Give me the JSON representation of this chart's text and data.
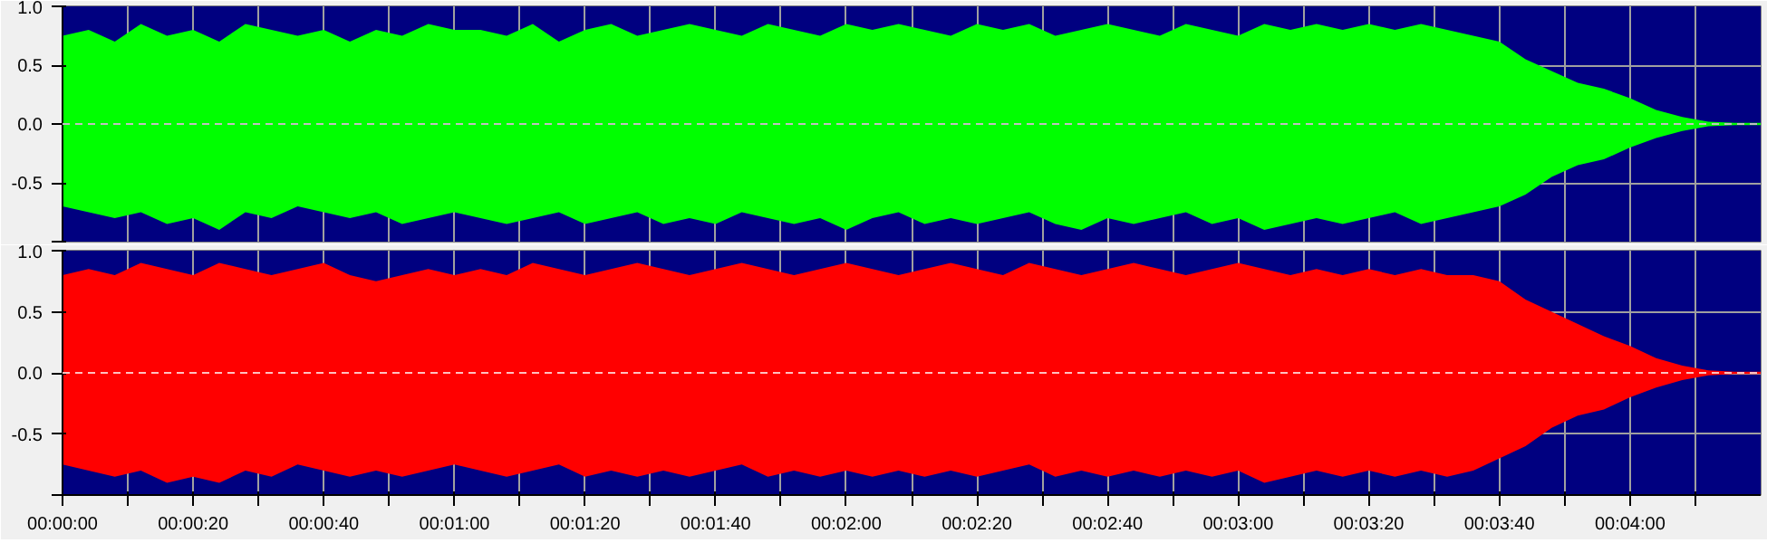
{
  "chart_data": [
    {
      "type": "area",
      "x": [
        0,
        4,
        8,
        12,
        16,
        20,
        24,
        28,
        32,
        36,
        40,
        44,
        48,
        52,
        56,
        60,
        64,
        68,
        72,
        76,
        80,
        84,
        88,
        92,
        96,
        100,
        104,
        108,
        112,
        116,
        120,
        124,
        128,
        132,
        136,
        140,
        144,
        148,
        152,
        156,
        160,
        164,
        168,
        172,
        176,
        180,
        184,
        188,
        192,
        196,
        200,
        204,
        208,
        212,
        216,
        220,
        224,
        228,
        232,
        236,
        240,
        244,
        248,
        252,
        256,
        260
      ],
      "xlim": [
        0,
        260
      ],
      "ylim": [
        -1.0,
        1.0
      ],
      "yticks": [
        {
          "value": -1.0,
          "label": null
        },
        {
          "value": -0.5,
          "label": "-0.5"
        },
        {
          "value": 0,
          "label": "0.0"
        },
        {
          "value": 0.5,
          "label": "0.5"
        },
        {
          "value": 1.0,
          "label": "1.0"
        }
      ],
      "xticks": [
        {
          "value": 0,
          "label": null
        },
        {
          "value": 10,
          "label": null
        },
        {
          "value": 20,
          "label": null
        },
        {
          "value": 30,
          "label": null
        },
        {
          "value": 40,
          "label": null
        },
        {
          "value": 50,
          "label": null
        },
        {
          "value": 60,
          "label": null
        },
        {
          "value": 70,
          "label": null
        },
        {
          "value": 80,
          "label": null
        },
        {
          "value": 90,
          "label": null
        },
        {
          "value": 100,
          "label": null
        },
        {
          "value": 110,
          "label": null
        },
        {
          "value": 120,
          "label": null
        },
        {
          "value": 130,
          "label": null
        },
        {
          "value": 140,
          "label": null
        },
        {
          "value": 150,
          "label": null
        },
        {
          "value": 160,
          "label": null
        },
        {
          "value": 170,
          "label": null
        },
        {
          "value": 180,
          "label": null
        },
        {
          "value": 190,
          "label": null
        },
        {
          "value": 200,
          "label": null
        },
        {
          "value": 210,
          "label": null
        },
        {
          "value": 220,
          "label": null
        },
        {
          "value": 230,
          "label": null
        },
        {
          "value": 240,
          "label": null
        },
        {
          "value": 250,
          "label": null
        }
      ],
      "tick_labels": "y",
      "grid": true,
      "bands": [
        {
          "axis": "x",
          "from": 0,
          "to": 260,
          "color": "#000080"
        }
      ],
      "ref_lines": [
        {
          "axis": "y",
          "value": 0,
          "color": "#c0c0c0",
          "line_style": "dashed"
        }
      ],
      "series": [
        {
          "color": "#00ff00",
          "values": [
            0.75,
            0.8,
            0.7,
            0.85,
            0.75,
            0.8,
            0.7,
            0.85,
            0.8,
            0.75,
            0.8,
            0.7,
            0.8,
            0.75,
            0.85,
            0.8,
            0.8,
            0.75,
            0.85,
            0.7,
            0.8,
            0.85,
            0.75,
            0.8,
            0.85,
            0.8,
            0.75,
            0.85,
            0.8,
            0.75,
            0.85,
            0.8,
            0.85,
            0.8,
            0.75,
            0.85,
            0.8,
            0.85,
            0.75,
            0.8,
            0.85,
            0.8,
            0.75,
            0.85,
            0.8,
            0.75,
            0.85,
            0.8,
            0.85,
            0.8,
            0.85,
            0.8,
            0.85,
            0.8,
            0.75,
            0.7,
            0.55,
            0.45,
            0.35,
            0.3,
            0.22,
            0.12,
            0.06,
            0.02,
            0.01,
            0.01
          ]
        },
        {
          "color": "#00ff00",
          "values": [
            -0.7,
            -0.75,
            -0.8,
            -0.75,
            -0.85,
            -0.8,
            -0.9,
            -0.75,
            -0.8,
            -0.7,
            -0.75,
            -0.8,
            -0.75,
            -0.85,
            -0.8,
            -0.75,
            -0.8,
            -0.85,
            -0.8,
            -0.75,
            -0.85,
            -0.8,
            -0.75,
            -0.85,
            -0.8,
            -0.85,
            -0.75,
            -0.8,
            -0.85,
            -0.8,
            -0.9,
            -0.8,
            -0.75,
            -0.85,
            -0.8,
            -0.85,
            -0.8,
            -0.75,
            -0.85,
            -0.9,
            -0.8,
            -0.85,
            -0.8,
            -0.75,
            -0.85,
            -0.8,
            -0.9,
            -0.85,
            -0.8,
            -0.85,
            -0.8,
            -0.75,
            -0.85,
            -0.8,
            -0.75,
            -0.7,
            -0.6,
            -0.45,
            -0.35,
            -0.3,
            -0.2,
            -0.12,
            -0.06,
            -0.02,
            -0.01,
            -0.01
          ]
        }
      ]
    },
    {
      "type": "area",
      "x": [
        0,
        4,
        8,
        12,
        16,
        20,
        24,
        28,
        32,
        36,
        40,
        44,
        48,
        52,
        56,
        60,
        64,
        68,
        72,
        76,
        80,
        84,
        88,
        92,
        96,
        100,
        104,
        108,
        112,
        116,
        120,
        124,
        128,
        132,
        136,
        140,
        144,
        148,
        152,
        156,
        160,
        164,
        168,
        172,
        176,
        180,
        184,
        188,
        192,
        196,
        200,
        204,
        208,
        212,
        216,
        220,
        224,
        228,
        232,
        236,
        240,
        244,
        248,
        252,
        256,
        260
      ],
      "xlim": [
        0,
        260
      ],
      "ylim": [
        -1.0,
        1.0
      ],
      "yticks": [
        {
          "value": -1.0,
          "label": null
        },
        {
          "value": -0.5,
          "label": "-0.5"
        },
        {
          "value": 0,
          "label": "0.0"
        },
        {
          "value": 0.5,
          "label": "0.5"
        },
        {
          "value": 1.0,
          "label": "1.0"
        }
      ],
      "xticks": [
        {
          "value": 0,
          "label": "00:00:00"
        },
        {
          "value": 10,
          "label": null
        },
        {
          "value": 20,
          "label": "00:00:20"
        },
        {
          "value": 30,
          "label": null
        },
        {
          "value": 40,
          "label": "00:00:40"
        },
        {
          "value": 50,
          "label": null
        },
        {
          "value": 60,
          "label": "00:01:00"
        },
        {
          "value": 70,
          "label": null
        },
        {
          "value": 80,
          "label": "00:01:20"
        },
        {
          "value": 90,
          "label": null
        },
        {
          "value": 100,
          "label": "00:01:40"
        },
        {
          "value": 110,
          "label": null
        },
        {
          "value": 120,
          "label": "00:02:00"
        },
        {
          "value": 130,
          "label": null
        },
        {
          "value": 140,
          "label": "00:02:20"
        },
        {
          "value": 150,
          "label": null
        },
        {
          "value": 160,
          "label": "00:02:40"
        },
        {
          "value": 170,
          "label": null
        },
        {
          "value": 180,
          "label": "00:03:00"
        },
        {
          "value": 190,
          "label": null
        },
        {
          "value": 200,
          "label": "00:03:20"
        },
        {
          "value": 210,
          "label": null
        },
        {
          "value": 220,
          "label": "00:03:40"
        },
        {
          "value": 230,
          "label": null
        },
        {
          "value": 240,
          "label": "00:04:00"
        },
        {
          "value": 250,
          "label": null
        }
      ],
      "grid": true,
      "bands": [
        {
          "axis": "x",
          "from": 0,
          "to": 260,
          "color": "#000080"
        }
      ],
      "ref_lines": [
        {
          "axis": "y",
          "value": 0,
          "color": "#ffc0c0",
          "line_style": "dashed"
        }
      ],
      "series": [
        {
          "color": "#ff0000",
          "values": [
            0.8,
            0.85,
            0.8,
            0.9,
            0.85,
            0.8,
            0.9,
            0.85,
            0.8,
            0.85,
            0.9,
            0.8,
            0.75,
            0.8,
            0.85,
            0.8,
            0.85,
            0.8,
            0.9,
            0.85,
            0.8,
            0.85,
            0.9,
            0.85,
            0.8,
            0.85,
            0.9,
            0.85,
            0.8,
            0.85,
            0.9,
            0.85,
            0.8,
            0.85,
            0.9,
            0.85,
            0.8,
            0.9,
            0.85,
            0.8,
            0.85,
            0.9,
            0.85,
            0.8,
            0.85,
            0.9,
            0.85,
            0.8,
            0.85,
            0.8,
            0.85,
            0.8,
            0.85,
            0.8,
            0.8,
            0.75,
            0.6,
            0.5,
            0.4,
            0.3,
            0.22,
            0.12,
            0.06,
            0.02,
            0.01,
            0.01
          ]
        },
        {
          "color": "#ff0000",
          "values": [
            -0.75,
            -0.8,
            -0.85,
            -0.8,
            -0.9,
            -0.85,
            -0.9,
            -0.8,
            -0.85,
            -0.75,
            -0.8,
            -0.85,
            -0.8,
            -0.85,
            -0.8,
            -0.75,
            -0.8,
            -0.85,
            -0.8,
            -0.75,
            -0.85,
            -0.8,
            -0.85,
            -0.8,
            -0.85,
            -0.8,
            -0.75,
            -0.85,
            -0.8,
            -0.85,
            -0.8,
            -0.85,
            -0.8,
            -0.85,
            -0.8,
            -0.85,
            -0.8,
            -0.75,
            -0.85,
            -0.8,
            -0.85,
            -0.8,
            -0.85,
            -0.8,
            -0.85,
            -0.8,
            -0.9,
            -0.85,
            -0.8,
            -0.85,
            -0.8,
            -0.85,
            -0.8,
            -0.85,
            -0.8,
            -0.7,
            -0.6,
            -0.45,
            -0.35,
            -0.3,
            -0.2,
            -0.12,
            -0.06,
            -0.02,
            -0.01,
            -0.01
          ]
        }
      ]
    }
  ]
}
